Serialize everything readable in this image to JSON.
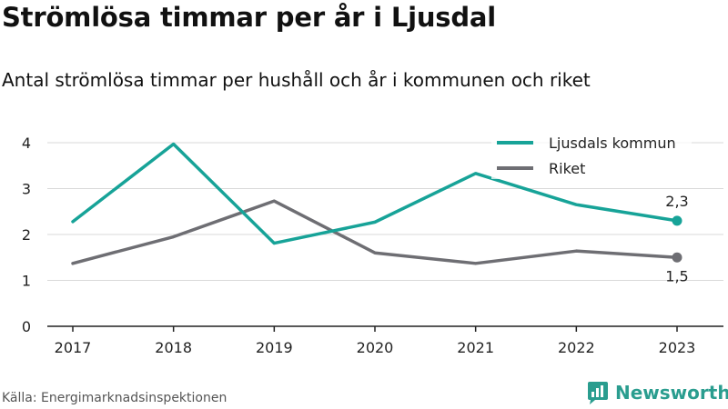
{
  "title": "Strömlösa timmar per år i Ljusdal",
  "subtitle": "Antal strömlösa timmar per hushåll och år i kommunen och riket",
  "source": "Källa: Energimarknadsinspektionen",
  "brand": "Newsworthy",
  "colors": {
    "ljusdal": "#17a398",
    "riket": "#6e6e73",
    "grid": "#d9d9d9",
    "axis": "#222222",
    "brand": "#2a9d8f"
  },
  "chart_data": {
    "type": "line",
    "x": [
      "2017",
      "2018",
      "2019",
      "2020",
      "2021",
      "2022",
      "2023"
    ],
    "yticks": [
      "0",
      "1",
      "2",
      "3",
      "4"
    ],
    "ylim": [
      0,
      4
    ],
    "grid": true,
    "legend_position": "top-right",
    "series": [
      {
        "name": "Ljusdals kommun",
        "values": [
          2.28,
          3.97,
          1.81,
          2.27,
          3.33,
          2.65,
          2.3
        ],
        "end_label": "2,3"
      },
      {
        "name": "Riket",
        "values": [
          1.37,
          1.95,
          2.73,
          1.6,
          1.37,
          1.64,
          1.5
        ],
        "end_label": "1,5"
      }
    ]
  }
}
